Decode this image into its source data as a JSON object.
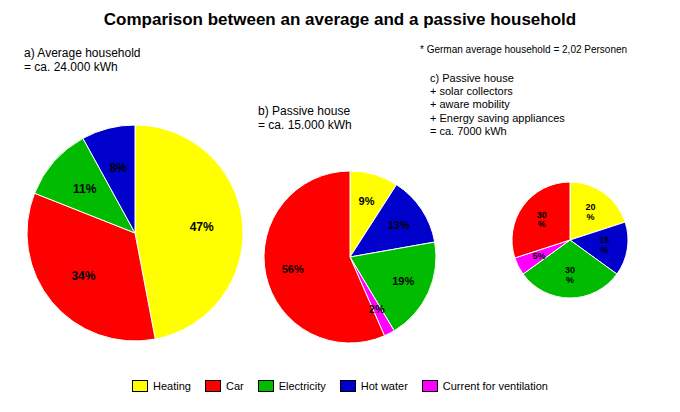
{
  "title": "Comparison between an average and a passive household",
  "subtitle": "* German average household = 2,02 Personen",
  "legend": "bottom",
  "chart_data": [
    {
      "type": "pie",
      "title": "a) Average household\n= ca. 24.000 kWh",
      "categories": [
        "Heating",
        "Car",
        "Electricity",
        "Hot water"
      ],
      "values": [
        47,
        34,
        11,
        8
      ],
      "value_labels": [
        "47%",
        "34%",
        "11%",
        "8%"
      ],
      "colors": [
        "#ffff00",
        "#ff0000",
        "#00bb00",
        "#0000cc"
      ],
      "data_labels": true
    },
    {
      "type": "pie",
      "title": "b) Passive house\n= ca. 15.000 kWh",
      "categories": [
        "Heating",
        "Hot water",
        "Electricity",
        "Current for ventilation",
        "Car"
      ],
      "values": [
        9,
        13,
        19,
        2,
        56
      ],
      "value_labels": [
        "9%",
        "13%",
        "19%",
        "2%",
        "56%"
      ],
      "colors": [
        "#ffff00",
        "#0000cc",
        "#00bb00",
        "#ff00ff",
        "#ff0000"
      ],
      "data_labels": true
    },
    {
      "type": "pie",
      "title": "c) Passive house\n+ solar collectors\n+ aware mobility\n+ Energy saving appliances\n= ca. 7000 kWh",
      "categories": [
        "Heating",
        "Hot water",
        "Electricity",
        "Current for ventilation",
        "Car"
      ],
      "values": [
        20,
        15,
        30,
        5,
        30
      ],
      "value_labels": [
        "20\n%",
        "15\n%",
        "30\n%",
        "5%",
        "30\n%"
      ],
      "colors": [
        "#ffff00",
        "#0000cc",
        "#00bb00",
        "#ff00ff",
        "#ff0000"
      ],
      "data_labels": true
    }
  ]
}
